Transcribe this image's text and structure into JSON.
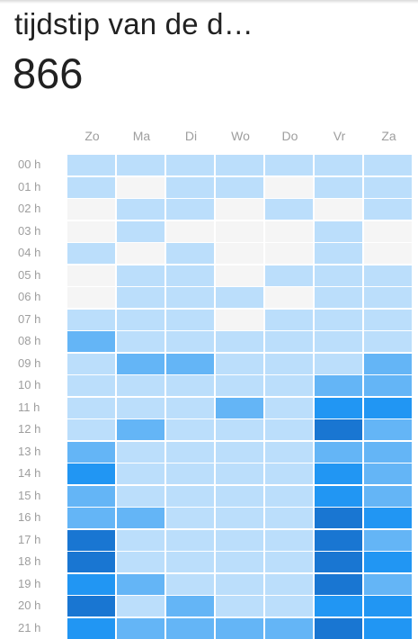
{
  "header": {
    "title": "tijdstip van de d…",
    "value": "866"
  },
  "heatmap": {
    "days": [
      "Zo",
      "Ma",
      "Di",
      "Wo",
      "Do",
      "Vr",
      "Za"
    ],
    "hours": [
      "00 h",
      "01 h",
      "02 h",
      "03 h",
      "04 h",
      "05 h",
      "06 h",
      "07 h",
      "08 h",
      "09 h",
      "10 h",
      "11 h",
      "12 h",
      "13 h",
      "14 h",
      "15 h",
      "16 h",
      "17 h",
      "18 h",
      "19 h",
      "20 h",
      "21 h"
    ],
    "levels": [
      [
        1,
        1,
        1,
        1,
        1,
        1,
        1
      ],
      [
        1,
        0,
        1,
        1,
        0,
        1,
        1
      ],
      [
        0,
        1,
        1,
        0,
        1,
        0,
        1
      ],
      [
        0,
        1,
        0,
        0,
        0,
        1,
        0
      ],
      [
        1,
        0,
        1,
        0,
        0,
        1,
        0
      ],
      [
        0,
        1,
        1,
        0,
        1,
        1,
        1
      ],
      [
        0,
        1,
        1,
        1,
        0,
        1,
        1
      ],
      [
        1,
        1,
        1,
        0,
        1,
        1,
        1
      ],
      [
        3,
        1,
        1,
        1,
        1,
        1,
        1
      ],
      [
        1,
        3,
        3,
        1,
        1,
        1,
        3
      ],
      [
        1,
        1,
        1,
        1,
        1,
        3,
        3
      ],
      [
        1,
        1,
        1,
        3,
        1,
        4,
        4
      ],
      [
        1,
        3,
        1,
        1,
        1,
        5,
        3
      ],
      [
        3,
        1,
        1,
        1,
        1,
        3,
        3
      ],
      [
        4,
        1,
        1,
        1,
        1,
        4,
        3
      ],
      [
        3,
        1,
        1,
        1,
        1,
        4,
        3
      ],
      [
        3,
        3,
        1,
        1,
        1,
        5,
        4
      ],
      [
        5,
        1,
        1,
        1,
        1,
        5,
        3
      ],
      [
        5,
        1,
        1,
        1,
        1,
        5,
        4
      ],
      [
        4,
        3,
        1,
        1,
        1,
        5,
        3
      ],
      [
        5,
        1,
        3,
        1,
        1,
        4,
        4
      ],
      [
        4,
        3,
        3,
        3,
        3,
        5,
        4
      ]
    ],
    "colors": [
      "#f5f5f5",
      "#bbdefb",
      "#90caf9",
      "#64b5f6",
      "#2196f3",
      "#1976d2"
    ]
  }
}
